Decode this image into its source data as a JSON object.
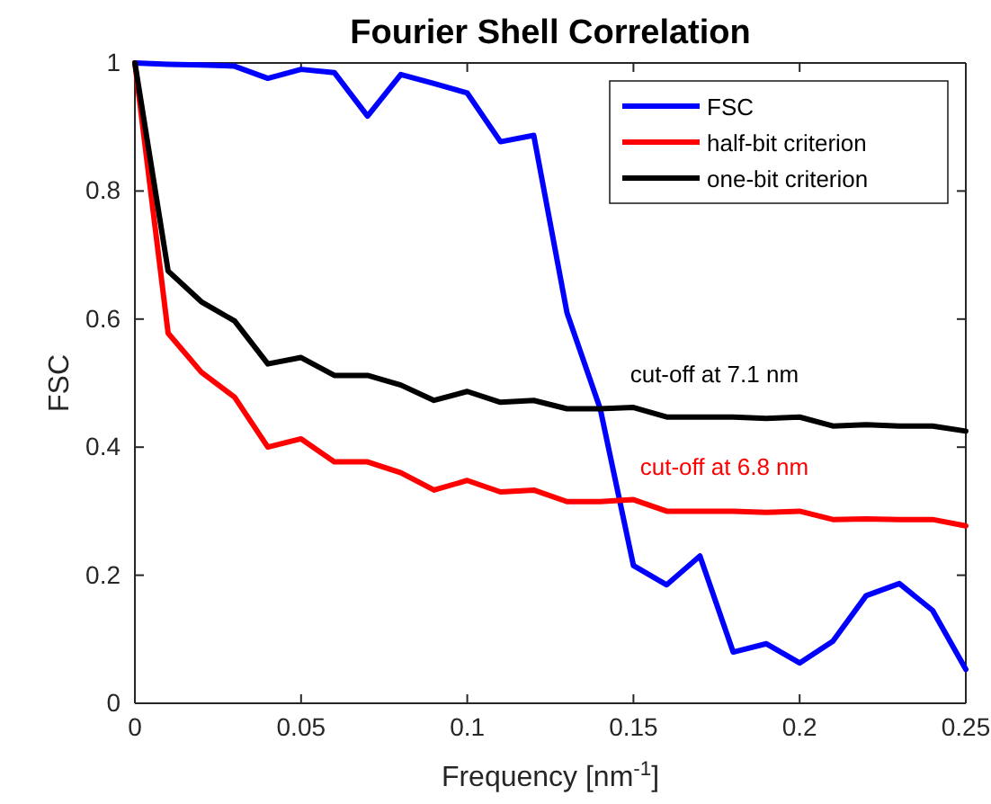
{
  "chart_data": {
    "type": "line",
    "title": "Fourier Shell Correlation",
    "xlabel": "Frequency [nm$^{-1}$]",
    "ylabel": "FSC",
    "x": [
      0,
      0.01,
      0.02,
      0.03,
      0.04,
      0.05,
      0.06,
      0.07,
      0.08,
      0.09,
      0.1,
      0.11,
      0.12,
      0.13,
      0.14,
      0.15,
      0.16,
      0.17,
      0.18,
      0.19,
      0.2,
      0.21,
      0.22,
      0.23,
      0.24,
      0.25
    ],
    "series": [
      {
        "name": "FSC",
        "color": "#0000ff",
        "values": [
          1,
          0.998,
          0.997,
          0.995,
          0.976,
          0.99,
          0.985,
          0.917,
          0.982,
          0.968,
          0.953,
          0.877,
          0.887,
          0.61,
          0.46,
          0.215,
          0.185,
          0.23,
          0.08,
          0.093,
          0.063,
          0.097,
          0.168,
          0.187,
          0.145,
          0.053
        ]
      },
      {
        "name": "half-bit criterion",
        "color": "#ff0000",
        "values": [
          1,
          0.578,
          0.517,
          0.478,
          0.4,
          0.413,
          0.377,
          0.377,
          0.36,
          0.333,
          0.348,
          0.33,
          0.333,
          0.315,
          0.315,
          0.318,
          0.3,
          0.3,
          0.3,
          0.298,
          0.3,
          0.287,
          0.288,
          0.287,
          0.287,
          0.277
        ]
      },
      {
        "name": "one-bit criterion",
        "color": "#000000",
        "values": [
          1,
          0.675,
          0.627,
          0.597,
          0.53,
          0.54,
          0.512,
          0.512,
          0.497,
          0.473,
          0.487,
          0.47,
          0.473,
          0.46,
          0.46,
          0.462,
          0.447,
          0.447,
          0.447,
          0.445,
          0.447,
          0.433,
          0.435,
          0.433,
          0.433,
          0.425
        ]
      }
    ],
    "annotations": [
      {
        "text": "cut-off at 7.1 nm",
        "x": 0.149,
        "y": 0.462
      },
      {
        "text": "cut-off at 6.8 nm",
        "x": 0.152,
        "y": 0.318
      }
    ],
    "xlim": [
      0,
      0.25
    ],
    "ylim": [
      0,
      1
    ],
    "xticks": [
      0,
      0.05,
      0.1,
      0.15,
      0.2,
      0.25
    ],
    "yticks": [
      0,
      0.2,
      0.4,
      0.6,
      0.8,
      1
    ],
    "grid": false,
    "legend": "top right",
    "marker": "none",
    "line_style": "solid"
  }
}
